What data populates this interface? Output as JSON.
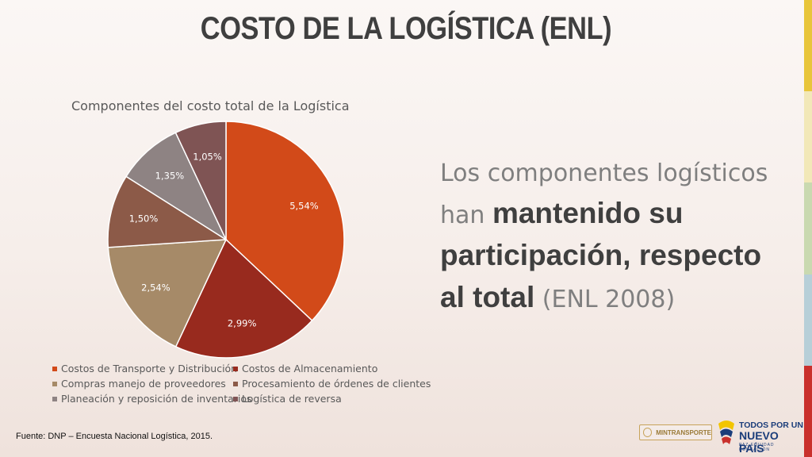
{
  "slide": {
    "title": "COSTO DE LA LOGÍSTICA (ENL)",
    "source": "Fuente: DNP – Encuesta Nacional Logística, 2015."
  },
  "side_text": {
    "part1": "Los componentes logísticos han ",
    "bold": "mantenido su participación, respecto al total",
    "part2": " (ENL 2008)"
  },
  "logos": {
    "mintransporte": "MINTRANSPORTE",
    "todos_line1": "TODOS POR UN",
    "todos_line2": "NUEVO PAÍS",
    "todos_line3": "PAZ  EQUIDAD  EDUCACIÓN"
  },
  "colors": {
    "accent_stripes": [
      "#e8c53a",
      "#f2e8b8",
      "#c9d9b0",
      "#b7cfd8",
      "#c9302c"
    ]
  },
  "chart_data": {
    "type": "pie",
    "title": "Componentes del costo total de la Logística",
    "legend_position": "bottom",
    "categories": [
      "Costos de Transporte y Distribución",
      "Costos de Almacenamiento",
      "Compras manejo de proveedores",
      "Procesamiento de órdenes de clientes",
      "Planeación y reposición de inventarios",
      "Logística de reversa"
    ],
    "values": [
      5.54,
      2.99,
      2.54,
      1.5,
      1.35,
      1.05
    ],
    "labels": [
      "5,54%",
      "2,99%",
      "2,54%",
      "1,50%",
      "1,35%",
      "1,05%"
    ],
    "colors": [
      "#d24a19",
      "#982a1e",
      "#a68a68",
      "#8c5a48",
      "#8e8383",
      "#7f5454"
    ]
  }
}
